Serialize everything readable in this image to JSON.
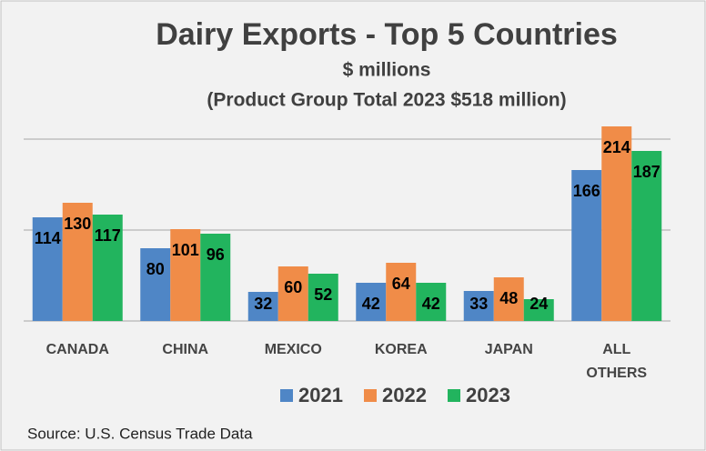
{
  "chart_data": {
    "type": "bar",
    "title": "Dairy Exports - Top 5 Countries",
    "subtitle": [
      "$ millions",
      "(Product Group Total 2023 $518 million)"
    ],
    "categories": [
      "CANADA",
      "CHINA",
      "MEXICO",
      "KOREA",
      "JAPAN",
      "ALL OTHERS"
    ],
    "series": [
      {
        "name": "2021",
        "color": "#4f86c6",
        "values": [
          114,
          80,
          32,
          42,
          33,
          166
        ]
      },
      {
        "name": "2022",
        "color": "#f08c48",
        "values": [
          130,
          101,
          60,
          64,
          48,
          214
        ]
      },
      {
        "name": "2023",
        "color": "#22b45e",
        "values": [
          117,
          96,
          52,
          42,
          24,
          187
        ]
      }
    ],
    "ylim": [
      0,
      250
    ],
    "yticks": [
      0,
      100,
      200
    ],
    "grid": true,
    "legend": "bottom",
    "source": "Source:  U.S. Census Trade Data"
  }
}
